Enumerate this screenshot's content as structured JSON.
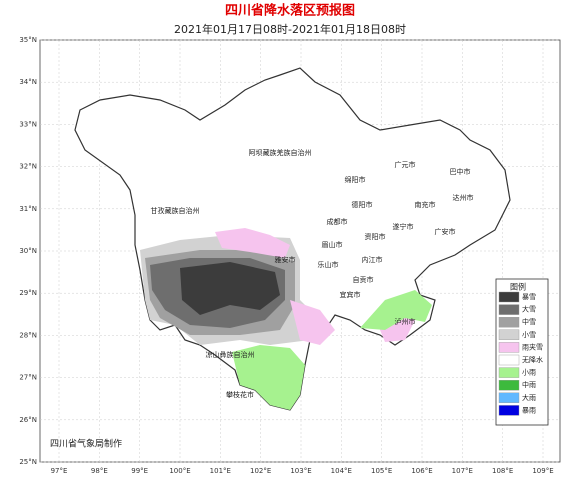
{
  "header": {
    "title": "四川省降水落区预报图",
    "subtitle": "2021年01月17日08时-2021年01月18日08时"
  },
  "lat_labels": [
    "35°N",
    "34°N",
    "33°N",
    "32°N",
    "31°N",
    "30°N",
    "29°N",
    "28°N",
    "27°N",
    "26°N",
    "25°N"
  ],
  "lon_labels": [
    "97°E",
    "98°E",
    "99°E",
    "100°E",
    "101°E",
    "102°E",
    "103°E",
    "104°E",
    "105°E",
    "106°E",
    "107°E",
    "108°E",
    "109°E"
  ],
  "regions": [
    {
      "label": "阿坝藏族羌族自治州"
    },
    {
      "label": "甘孜藏族自治州"
    },
    {
      "label": "凉山彝族自治州"
    },
    {
      "label": "攀枝花市"
    },
    {
      "label": "雅安市"
    },
    {
      "label": "乐山市"
    },
    {
      "label": "眉山市"
    },
    {
      "label": "成都市"
    },
    {
      "label": "德阳市"
    },
    {
      "label": "绵阳市"
    },
    {
      "label": "广元市"
    },
    {
      "label": "巴中市"
    },
    {
      "label": "达州市"
    },
    {
      "label": "南充市"
    },
    {
      "label": "遂宁市"
    },
    {
      "label": "资阳市"
    },
    {
      "label": "内江市"
    },
    {
      "label": "自贡市"
    },
    {
      "label": "宜宾市"
    },
    {
      "label": "泸州市"
    },
    {
      "label": "广安市"
    }
  ],
  "legend": {
    "title": "图例",
    "items": [
      {
        "label": "暴雪",
        "color": "#3c3c3c"
      },
      {
        "label": "大雪",
        "color": "#6e6e6e"
      },
      {
        "label": "中雪",
        "color": "#a0a0a0"
      },
      {
        "label": "小雪",
        "color": "#d2d2d2"
      },
      {
        "label": "雨夹雪",
        "color": "#f6c4ee"
      },
      {
        "label": "无降水",
        "color": "#ffffff"
      },
      {
        "label": "小雨",
        "color": "#a6f28f"
      },
      {
        "label": "中雨",
        "color": "#3dba3d"
      },
      {
        "label": "大雨",
        "color": "#61b8ff"
      },
      {
        "label": "暴雨",
        "color": "#0000e1"
      }
    ]
  },
  "footer": "四川省气象局制作"
}
